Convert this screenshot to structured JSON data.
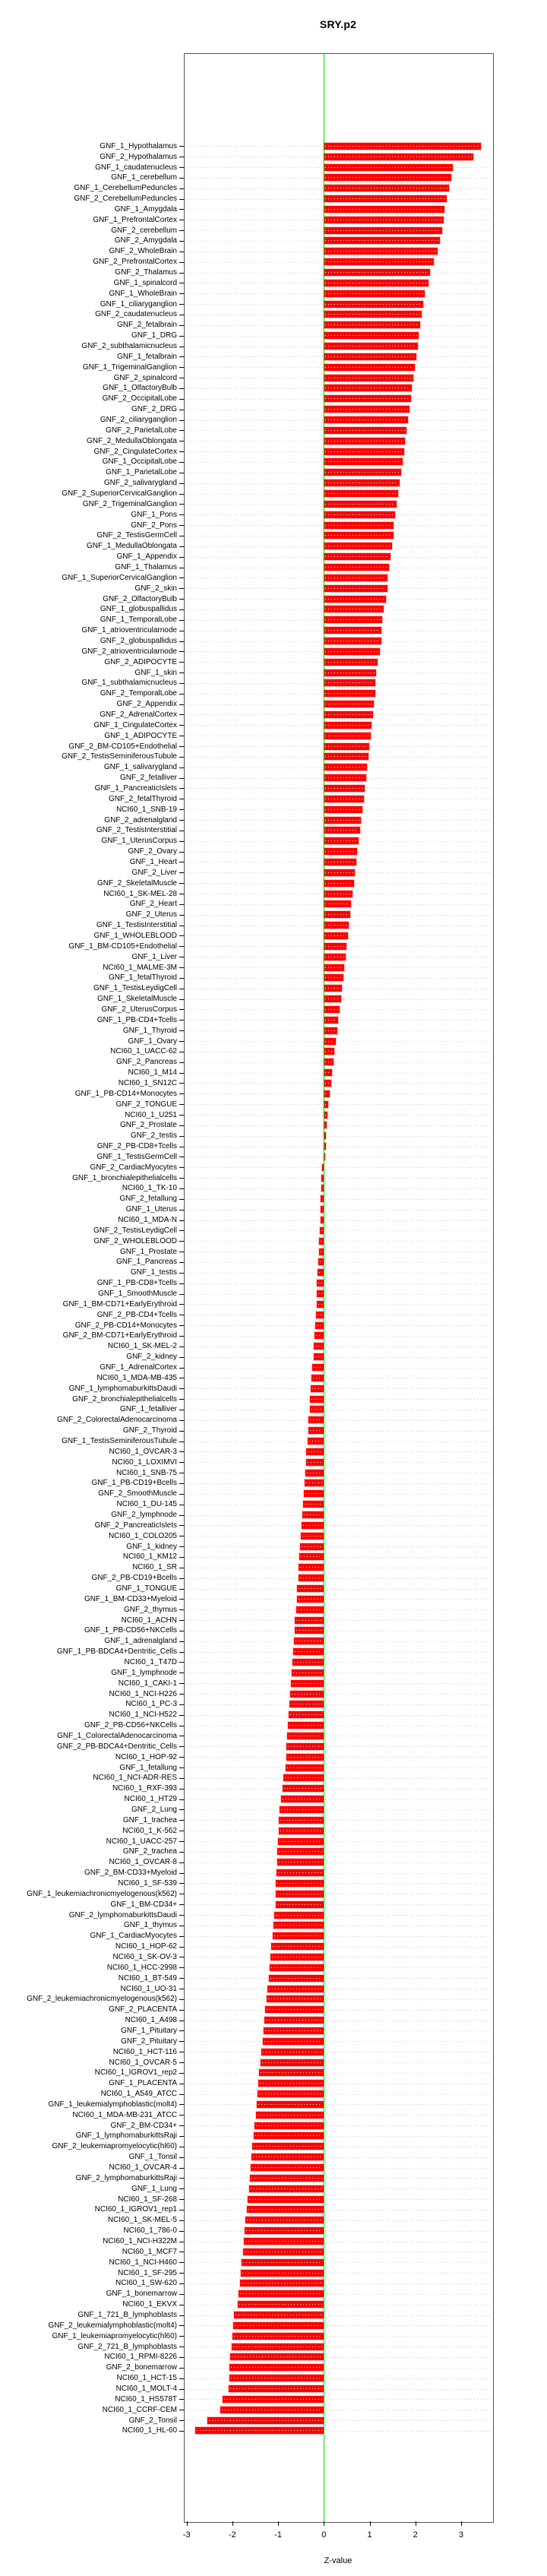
{
  "title": "SRY.p2",
  "chart_data": {
    "type": "bar",
    "orientation": "horizontal",
    "title": "SRY.p2",
    "xlabel": "Z-value",
    "x_ticks": [
      -3,
      -2,
      -1,
      0,
      1,
      2,
      3
    ],
    "xlim": [
      -3.06,
      3.68
    ],
    "grid": "dotted-row-leaders",
    "legend": "none",
    "bar_color": "#ff0000",
    "zero_line_color": "#00dd00",
    "categories": [
      "GNF_1_Hypothalamus",
      "GNF_2_Hypothalamus",
      "GNF_1_caudatenucleus",
      "GNF_1_cerebellum",
      "GNF_1_CerebellumPeduncles",
      "GNF_2_CerebellumPeduncles",
      "GNF_1_Amygdala",
      "GNF_1_PrefrontalCortex",
      "GNF_2_cerebellum",
      "GNF_2_Amygdala",
      "GNF_2_WholeBrain",
      "GNF_2_PrefrontalCortex",
      "GNF_2_Thalamus",
      "GNF_1_spinalcord",
      "GNF_1_WholeBrain",
      "GNF_1_ciliaryganglion",
      "GNF_2_caudatenucleus",
      "GNF_2_fetalbrain",
      "GNF_1_DRG",
      "GNF_2_subthalamicnucleus",
      "GNF_1_fetalbrain",
      "GNF_1_TrigeminalGanglion",
      "GNF_2_spinalcord",
      "GNF_1_OlfactoryBulb",
      "GNF_2_OccipitalLobe",
      "GNF_2_DRG",
      "GNF_2_ciliaryganglion",
      "GNF_2_ParietalLobe",
      "GNF_2_MedullaOblongata",
      "GNF_2_CingulateCortex",
      "GNF_1_OccipitalLobe",
      "GNF_1_ParietalLobe",
      "GNF_2_salivarygland",
      "GNF_2_SuperiorCervicalGanglion",
      "GNF_2_TrigeminalGanglion",
      "GNF_1_Pons",
      "GNF_2_Pons",
      "GNF_2_TestisGermCell",
      "GNF_1_MedullaOblongata",
      "GNF_1_Appendix",
      "GNF_1_Thalamus",
      "GNF_1_SuperiorCervicalGanglion",
      "GNF_2_skin",
      "GNF_2_OlfactoryBulb",
      "GNF_1_globuspallidus",
      "GNF_1_TemporalLobe",
      "GNF_1_atrioventricularnode",
      "GNF_2_globuspallidus",
      "GNF_2_atrioventricularnode",
      "GNF_2_ADIPOCYTE",
      "GNF_1_skin",
      "GNF_1_subthalamicnucleus",
      "GNF_2_TemporalLobe",
      "GNF_2_Appendix",
      "GNF_2_AdrenalCortex",
      "GNF_1_CingulateCortex",
      "GNF_1_ADIPOCYTE",
      "GNF_2_BM-CD105+Endothelial",
      "GNF_2_TestisSeminiferousTubule",
      "GNF_1_salivarygland",
      "GNF_2_fetalliver",
      "GNF_1_PancreaticIslets",
      "GNF_2_fetalThyroid",
      "NCI60_1_SNB-19",
      "GNF_2_adrenalgland",
      "GNF_2_TestisInterstitial",
      "GNF_1_UterusCorpus",
      "GNF_2_Ovary",
      "GNF_1_Heart",
      "GNF_2_Liver",
      "GNF_2_SkeletalMuscle",
      "NCI60_1_SK-MEL-28",
      "GNF_2_Heart",
      "GNF_2_Uterus",
      "GNF_1_TestisInterstitial",
      "GNF_1_WHOLEBLOOD",
      "GNF_1_BM-CD105+Endothelial",
      "GNF_1_Liver",
      "NCI60_1_MALME-3M",
      "GNF_1_fetalThyroid",
      "GNF_1_TestisLeydigCell",
      "GNF_1_SkeletalMuscle",
      "GNF_2_UterusCorpus",
      "GNF_1_PB-CD4+Tcells",
      "GNF_1_Thyroid",
      "GNF_1_Ovary",
      "NCI60_1_UACC-62",
      "GNF_2_Pancreas",
      "NCI60_1_M14",
      "NCI60_1_SN12C",
      "GNF_1_PB-CD14+Monocytes",
      "GNF_2_TONGUE",
      "NCI60_1_U251",
      "GNF_2_Prostate",
      "GNF_2_testis",
      "GNF_2_PB-CD8+Tcells",
      "GNF_1_TestisGermCell",
      "GNF_2_CardiacMyocytes",
      "GNF_1_bronchialepithelialcells",
      "NCI60_1_TK-10",
      "GNF_2_fetallung",
      "GNF_1_Uterus",
      "NCI60_1_MDA-N",
      "GNF_2_TestisLeydigCell",
      "GNF_2_WHOLEBLOOD",
      "GNF_1_Prostate",
      "GNF_1_Pancreas",
      "GNF_1_testis",
      "GNF_1_PB-CD8+Tcells",
      "GNF_1_SmoothMuscle",
      "GNF_1_BM-CD71+EarlyErythroid",
      "GNF_2_PB-CD4+Tcells",
      "GNF_2_PB-CD14+Monocytes",
      "GNF_2_BM-CD71+EarlyErythroid",
      "NCI60_1_SK-MEL-2",
      "GNF_2_kidney",
      "GNF_1_AdrenalCortex",
      "NCI60_1_MDA-MB-435",
      "GNF_1_lymphomaburkittsDaudi",
      "GNF_2_bronchialepithelialcells",
      "GNF_1_fetalliver",
      "GNF_2_ColorectalAdenocarcinoma",
      "GNF_2_Thyroid",
      "GNF_1_TestisSeminiferousTubule",
      "NCI60_1_OVCAR-3",
      "NCI60_1_LOXIMVI",
      "NCI60_1_SNB-75",
      "GNF_1_PB-CD19+Bcells",
      "GNF_2_SmoothMuscle",
      "NCI60_1_DU-145",
      "GNF_2_lymphnode",
      "GNF_2_PancreaticIslets",
      "NCI60_1_COLO205",
      "GNF_1_kidney",
      "NCI60_1_KM12",
      "NCI60_1_SR",
      "GNF_2_PB-CD19+Bcells",
      "GNF_1_TONGUE",
      "GNF_1_BM-CD33+Myeloid",
      "GNF_2_thymus",
      "NCI60_1_ACHN",
      "GNF_1_PB-CD56+NKCells",
      "GNF_1_adrenalgland",
      "GNF_1_PB-BDCA4+Dentritic_Cells",
      "NCI60_1_T47D",
      "GNF_1_lymphnode",
      "NCI60_1_CAKI-1",
      "NCI60_1_NCI-H226",
      "NCI60_1_PC-3",
      "NCI60_1_NCI-H522",
      "GNF_2_PB-CD56+NKCells",
      "GNF_1_ColorectalAdenocarcinoma",
      "GNF_2_PB-BDCA4+Dentritic_Cells",
      "NCI60_1_HOP-92",
      "GNF_1_fetallung",
      "NCI60_1_NCI-ADR-RES",
      "NCI60_1_RXF-393",
      "NCI60_1_HT29",
      "GNF_2_Lung",
      "GNF_1_trachea",
      "NCI60_1_K-562",
      "NCI60_1_UACC-257",
      "GNF_2_trachea",
      "NCI60_1_OVCAR-8",
      "GNF_2_BM-CD33+Myeloid",
      "NCI60_1_SF-539",
      "GNF_1_leukemiachronicmyelogenous(k562)",
      "GNF_1_BM-CD34+",
      "GNF_2_lymphomaburkittsDaudi",
      "GNF_1_thymus",
      "GNF_1_CardiacMyocytes",
      "NCI60_1_HOP-62",
      "NCI60_1_SK-OV-3",
      "NCI60_1_HCC-2998",
      "NCI60_1_BT-549",
      "NCI60_1_UO-31",
      "GNF_2_leukemiachronicmyelogenous(k562)",
      "GNF_2_PLACENTA",
      "NCI60_1_A498",
      "GNF_1_Pituitary",
      "GNF_2_Pituitary",
      "NCI60_1_HCT-116",
      "NCI60_1_OVCAR-5",
      "NCI60_1_IGROV1_rep2",
      "GNF_1_PLACENTA",
      "NCI60_1_A549_ATCC",
      "GNF_1_leukemialymphoblastic(molt4)",
      "NCI60_1_MDA-MB-231_ATCC",
      "GNF_2_BM-CD34+",
      "GNF_1_lymphomaburkittsRaji",
      "GNF_2_leukemiapromyelocytic(hl60)",
      "GNF_1_Tonsil",
      "NCI60_1_OVCAR-4",
      "GNF_2_lymphomaburkittsRaji",
      "GNF_1_Lung",
      "NCI60_1_SF-268",
      "NCI60_1_IGROV1_rep1",
      "NCI60_1_SK-MEL-5",
      "NCI60_1_786-0",
      "NCI60_1_NCI-H322M",
      "NCI60_1_MCF7",
      "NCI60_1_NCI-H460",
      "NCI60_1_SF-295",
      "NCI60_1_SW-620",
      "GNF_1_bonemarrow",
      "NCI60_1_EKVX",
      "GNF_1_721_B_lymphoblasts",
      "GNF_2_leukemialymphoblastic(molt4)",
      "GNF_1_leukemiapromyelocytic(hl60)",
      "GNF_2_721_B_lymphoblasts",
      "NCI60_1_RPMI-8226",
      "GNF_2_bonemarrow",
      "NCI60_1_HCT-15",
      "NCI60_1_MOLT-4",
      "NCI60_1_HS578T",
      "NCI60_1_CCRF-CEM",
      "GNF_2_Tonsil",
      "NCI60_1_HL-60"
    ],
    "values": [
      3.44,
      3.26,
      2.82,
      2.78,
      2.74,
      2.69,
      2.63,
      2.62,
      2.59,
      2.54,
      2.49,
      2.41,
      2.32,
      2.28,
      2.2,
      2.17,
      2.14,
      2.11,
      2.08,
      2.05,
      2.02,
      1.99,
      1.96,
      1.93,
      1.9,
      1.87,
      1.84,
      1.81,
      1.78,
      1.75,
      1.72,
      1.69,
      1.66,
      1.62,
      1.59,
      1.56,
      1.52,
      1.52,
      1.49,
      1.45,
      1.43,
      1.39,
      1.39,
      1.35,
      1.31,
      1.28,
      1.25,
      1.25,
      1.23,
      1.18,
      1.14,
      1.13,
      1.13,
      1.1,
      1.08,
      1.05,
      1.02,
      1.0,
      0.97,
      0.94,
      0.92,
      0.89,
      0.87,
      0.84,
      0.81,
      0.79,
      0.76,
      0.73,
      0.71,
      0.68,
      0.66,
      0.63,
      0.6,
      0.58,
      0.55,
      0.52,
      0.5,
      0.47,
      0.44,
      0.42,
      0.39,
      0.37,
      0.34,
      0.31,
      0.29,
      0.26,
      0.23,
      0.21,
      0.18,
      0.16,
      0.13,
      0.1,
      0.08,
      0.06,
      0.05,
      0.04,
      0.01,
      -0.04,
      -0.05,
      -0.06,
      -0.07,
      -0.07,
      -0.08,
      -0.09,
      -0.1,
      -0.11,
      -0.12,
      -0.14,
      -0.15,
      -0.15,
      -0.16,
      -0.17,
      -0.19,
      -0.2,
      -0.22,
      -0.23,
      -0.25,
      -0.27,
      -0.28,
      -0.3,
      -0.31,
      -0.33,
      -0.34,
      -0.36,
      -0.38,
      -0.39,
      -0.41,
      -0.42,
      -0.44,
      -0.45,
      -0.47,
      -0.48,
      -0.5,
      -0.52,
      -0.53,
      -0.55,
      -0.56,
      -0.58,
      -0.59,
      -0.61,
      -0.63,
      -0.64,
      -0.66,
      -0.67,
      -0.69,
      -0.7,
      -0.72,
      -0.73,
      -0.75,
      -0.77,
      -0.78,
      -0.8,
      -0.82,
      -0.82,
      -0.84,
      -0.89,
      -0.91,
      -0.94,
      -0.97,
      -0.98,
      -0.99,
      -1.01,
      -1.02,
      -1.02,
      -1.03,
      -1.05,
      -1.06,
      -1.06,
      -1.08,
      -1.1,
      -1.12,
      -1.15,
      -1.17,
      -1.19,
      -1.21,
      -1.23,
      -1.25,
      -1.28,
      -1.3,
      -1.32,
      -1.34,
      -1.36,
      -1.38,
      -1.41,
      -1.43,
      -1.45,
      -1.47,
      -1.49,
      -1.51,
      -1.54,
      -1.56,
      -1.58,
      -1.6,
      -1.62,
      -1.64,
      -1.67,
      -1.69,
      -1.71,
      -1.73,
      -1.75,
      -1.77,
      -1.8,
      -1.82,
      -1.84,
      -1.86,
      -1.88,
      -1.96,
      -1.98,
      -2.0,
      -2.02,
      -2.05,
      -2.06,
      -2.07,
      -2.09,
      -2.21,
      -2.27,
      -2.54,
      -2.81
    ]
  }
}
